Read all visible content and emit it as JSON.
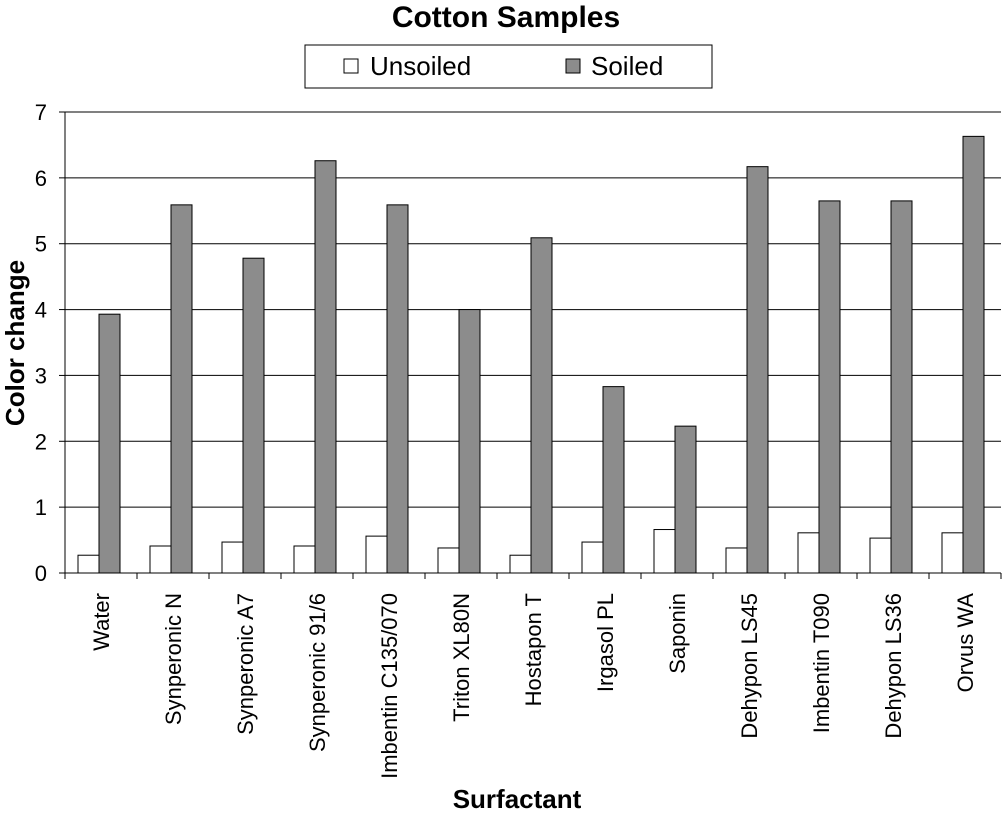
{
  "chart_data": {
    "type": "bar",
    "title": "Cotton Samples",
    "xlabel": "Surfactant",
    "ylabel": "Color change",
    "ylim": [
      0,
      7
    ],
    "yticks": [
      0,
      1,
      2,
      3,
      4,
      5,
      6,
      7
    ],
    "grid": true,
    "legend_position": "top-center",
    "categories": [
      "Water",
      "Synperonic N",
      "Synperonic A7",
      "Synperonic 91/6",
      "Imbentin C135/070",
      "Triton XL80N",
      "Hostapon T",
      "Irgasol PL",
      "Saponin",
      "Dehypon LS45",
      "Imbentin T090",
      "Dehypon LS36",
      "Orvus WA"
    ],
    "series": [
      {
        "name": "Unsoiled",
        "color": "#ffffff",
        "values": [
          0.27,
          0.41,
          0.47,
          0.41,
          0.56,
          0.38,
          0.27,
          0.47,
          0.66,
          0.38,
          0.61,
          0.53,
          0.61
        ]
      },
      {
        "name": "Soiled",
        "color": "#8c8c8c",
        "values": [
          3.93,
          5.59,
          4.78,
          6.26,
          5.59,
          4.0,
          5.09,
          2.83,
          2.23,
          6.17,
          5.65,
          5.65,
          6.63
        ]
      }
    ]
  }
}
